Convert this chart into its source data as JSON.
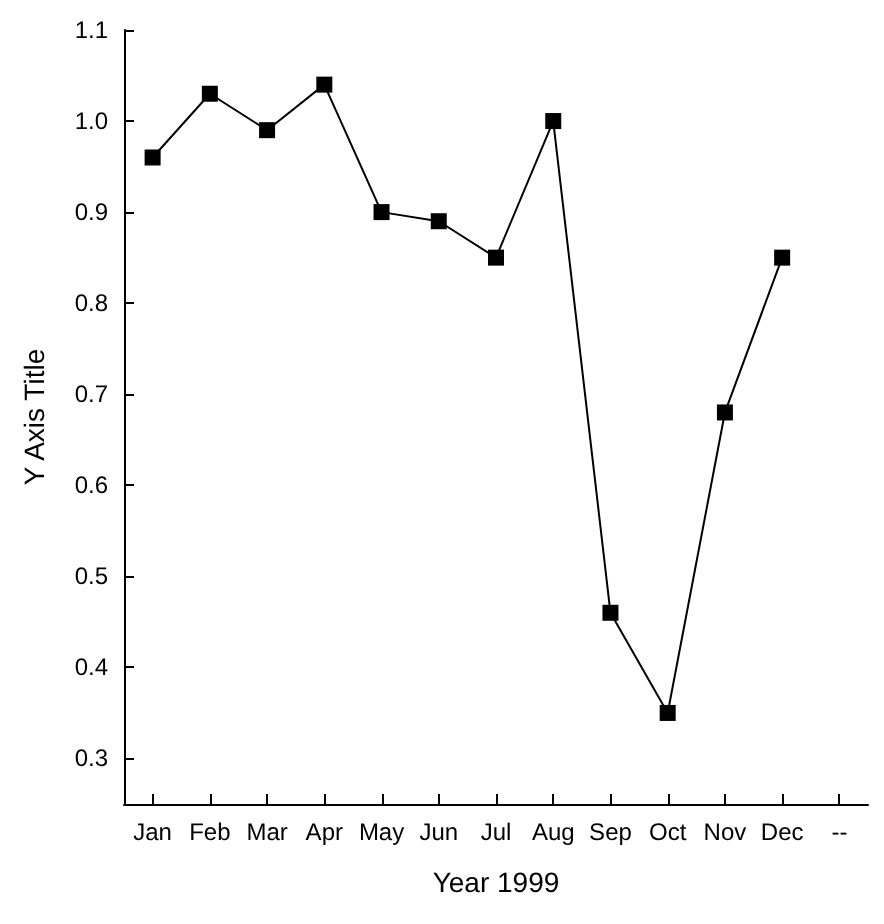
{
  "chart_data": {
    "type": "line",
    "xlabel": "Year 1999",
    "ylabel": "Y Axis Title",
    "categories": [
      "Jan",
      "Feb",
      "Mar",
      "Apr",
      "May",
      "Jun",
      "Jul",
      "Aug",
      "Sep",
      "Oct",
      "Nov",
      "Dec",
      "--"
    ],
    "series": [
      {
        "color": "#000000",
        "values": [
          0.96,
          1.03,
          0.99,
          1.04,
          0.9,
          0.89,
          0.85,
          1.0,
          0.46,
          0.35,
          0.68,
          0.85,
          null
        ]
      }
    ],
    "ylim": [
      0.25,
      1.1
    ],
    "yticks": [
      0.3,
      0.4,
      0.5,
      0.6,
      0.7,
      0.8,
      0.9,
      {
        "value": 1,
        "label": "1.0"
      },
      1.1
    ],
    "grid": false,
    "marker": "square",
    "line_style": "solid"
  }
}
